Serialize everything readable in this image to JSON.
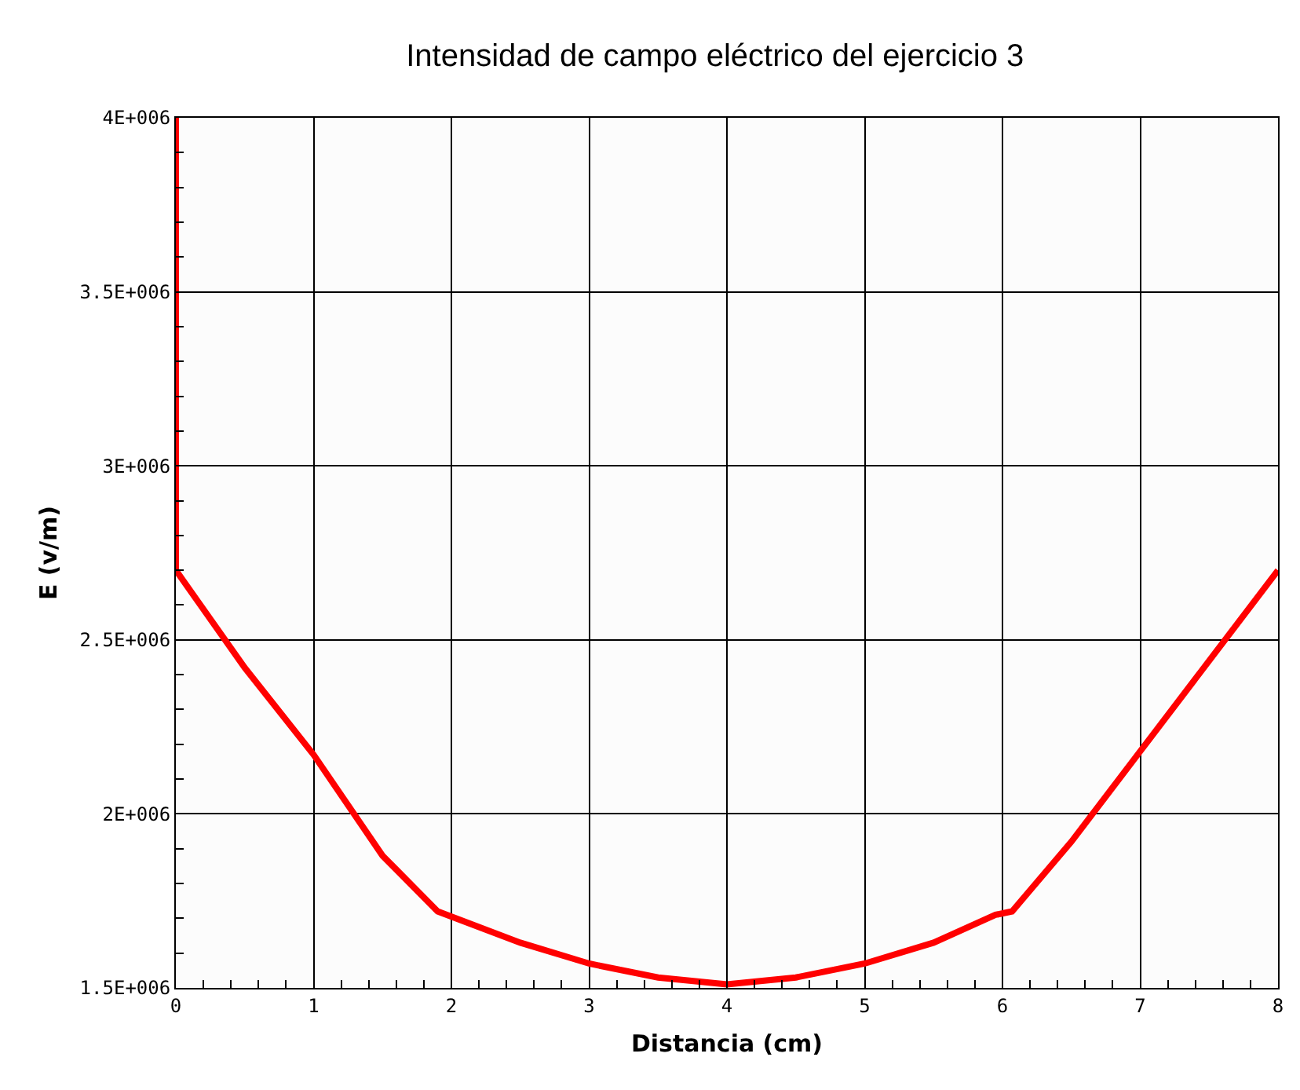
{
  "chart_data": {
    "type": "line",
    "title": "Intensidad de campo eléctrico del ejercicio 3",
    "xlabel": "Distancia (cm)",
    "ylabel": "E (v/m)",
    "x": [
      0,
      0,
      0.5,
      1,
      1.5,
      1.9,
      2.5,
      3,
      3.5,
      4,
      4.5,
      5,
      5.5,
      5.95,
      6.07,
      6.5,
      7,
      7.5,
      8
    ],
    "series": [
      {
        "color": "#ff0000",
        "values": [
          4000000,
          2700000,
          2420000,
          2170000,
          1880000,
          1720000,
          1630000,
          1570000,
          1530000,
          1510000,
          1530000,
          1570000,
          1630000,
          1710000,
          1720000,
          1920000,
          2180000,
          2440000,
          2700000
        ]
      }
    ],
    "xlim": [
      0,
      8
    ],
    "xticks": [
      0,
      1,
      2,
      3,
      4,
      5,
      6,
      7,
      8
    ],
    "ylim": [
      1500000,
      4000000
    ],
    "yticks": [
      {
        "value": 1500000,
        "label": "1.5E+006"
      },
      {
        "value": 2000000,
        "label": "2E+006"
      },
      {
        "value": 2500000,
        "label": "2.5E+006"
      },
      {
        "value": 3000000,
        "label": "3E+006"
      },
      {
        "value": 3500000,
        "label": "3.5E+006"
      },
      {
        "value": 4000000,
        "label": "4E+006"
      }
    ],
    "grid": true,
    "legend": false,
    "marker": "none",
    "line_style": "solid"
  }
}
